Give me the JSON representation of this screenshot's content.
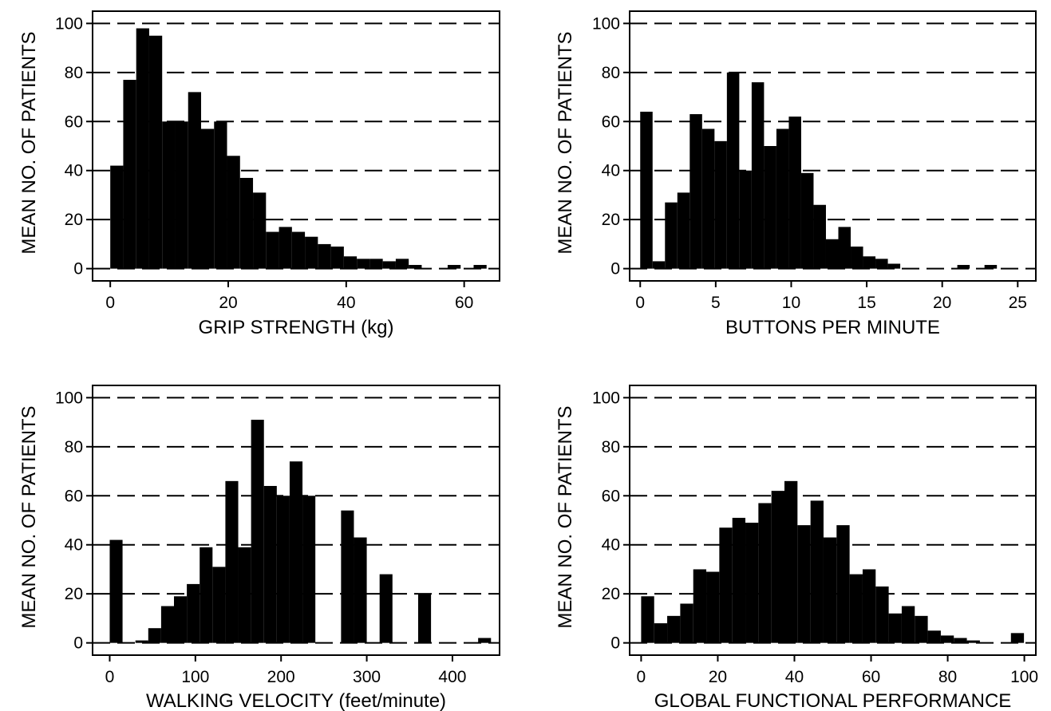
{
  "chart_data": [
    {
      "type": "bar",
      "xlabel": "GRIP STRENGTH (kg)",
      "ylabel": "MEAN NO. OF PATIENTS",
      "xlim": [
        -3,
        66
      ],
      "ylim": [
        -5,
        105
      ],
      "xticks": [
        0,
        20,
        40,
        60
      ],
      "yticks": [
        0,
        20,
        40,
        60,
        80,
        100
      ],
      "grid": "dashed horizontal",
      "bin_width": 2.2,
      "bars": [
        {
          "x0": 0.0,
          "value": 42
        },
        {
          "x0": 2.2,
          "value": 77
        },
        {
          "x0": 4.4,
          "value": 98
        },
        {
          "x0": 6.6,
          "value": 95
        },
        {
          "x0": 8.8,
          "value": 60
        },
        {
          "x0": 11.0,
          "value": 60
        },
        {
          "x0": 13.2,
          "value": 72
        },
        {
          "x0": 15.4,
          "value": 57
        },
        {
          "x0": 17.6,
          "value": 60
        },
        {
          "x0": 19.8,
          "value": 46
        },
        {
          "x0": 22.0,
          "value": 37
        },
        {
          "x0": 24.2,
          "value": 31
        },
        {
          "x0": 26.4,
          "value": 15
        },
        {
          "x0": 28.6,
          "value": 17
        },
        {
          "x0": 30.8,
          "value": 15
        },
        {
          "x0": 33.0,
          "value": 13
        },
        {
          "x0": 35.2,
          "value": 10
        },
        {
          "x0": 37.4,
          "value": 9
        },
        {
          "x0": 39.6,
          "value": 5
        },
        {
          "x0": 41.8,
          "value": 4
        },
        {
          "x0": 44.0,
          "value": 4
        },
        {
          "x0": 46.2,
          "value": 3
        },
        {
          "x0": 48.4,
          "value": 4
        },
        {
          "x0": 50.6,
          "value": 1.5
        },
        {
          "x0": 57.2,
          "value": 1.5
        },
        {
          "x0": 61.6,
          "value": 1.5
        }
      ]
    },
    {
      "type": "bar",
      "xlabel": "BUTTONS PER MINUTE",
      "ylabel": "MEAN NO. OF PATIENTS",
      "xlim": [
        -0.7,
        26.2
      ],
      "ylim": [
        -5,
        105
      ],
      "xticks": [
        0,
        5,
        10,
        15,
        20,
        25
      ],
      "yticks": [
        0,
        20,
        40,
        60,
        80,
        100
      ],
      "grid": "dashed horizontal",
      "bin_width": 0.82,
      "bars": [
        {
          "x0": 0.0,
          "value": 64
        },
        {
          "x0": 0.82,
          "value": 3
        },
        {
          "x0": 1.64,
          "value": 27
        },
        {
          "x0": 2.46,
          "value": 31
        },
        {
          "x0": 3.28,
          "value": 63
        },
        {
          "x0": 4.1,
          "value": 57
        },
        {
          "x0": 4.92,
          "value": 52
        },
        {
          "x0": 5.74,
          "value": 80
        },
        {
          "x0": 6.56,
          "value": 40
        },
        {
          "x0": 7.38,
          "value": 76
        },
        {
          "x0": 8.2,
          "value": 50
        },
        {
          "x0": 9.02,
          "value": 57
        },
        {
          "x0": 9.84,
          "value": 62
        },
        {
          "x0": 10.66,
          "value": 39
        },
        {
          "x0": 11.48,
          "value": 26
        },
        {
          "x0": 12.3,
          "value": 12
        },
        {
          "x0": 13.12,
          "value": 17
        },
        {
          "x0": 13.94,
          "value": 9
        },
        {
          "x0": 14.76,
          "value": 5
        },
        {
          "x0": 15.58,
          "value": 4
        },
        {
          "x0": 16.4,
          "value": 2
        },
        {
          "x0": 21.0,
          "value": 1.5
        },
        {
          "x0": 22.8,
          "value": 1.5
        }
      ]
    },
    {
      "type": "bar",
      "xlabel": "WALKING VELOCITY (feet/minute)",
      "ylabel": "MEAN NO. OF PATIENTS",
      "xlim": [
        -20,
        455
      ],
      "ylim": [
        -5,
        105
      ],
      "xticks": [
        0,
        100,
        200,
        300,
        400
      ],
      "yticks": [
        0,
        20,
        40,
        60,
        80,
        100
      ],
      "grid": "dashed horizontal",
      "bin_width": 15,
      "bars": [
        {
          "x0": 0,
          "value": 42
        },
        {
          "x0": 30,
          "value": 1
        },
        {
          "x0": 45,
          "value": 6
        },
        {
          "x0": 60,
          "value": 15
        },
        {
          "x0": 75,
          "value": 19
        },
        {
          "x0": 90,
          "value": 24
        },
        {
          "x0": 105,
          "value": 39
        },
        {
          "x0": 120,
          "value": 31
        },
        {
          "x0": 135,
          "value": 66
        },
        {
          "x0": 150,
          "value": 39
        },
        {
          "x0": 165,
          "value": 91
        },
        {
          "x0": 180,
          "value": 64
        },
        {
          "x0": 195,
          "value": 60
        },
        {
          "x0": 210,
          "value": 74
        },
        {
          "x0": 225,
          "value": 60
        },
        {
          "x0": 270,
          "value": 54
        },
        {
          "x0": 285,
          "value": 43
        },
        {
          "x0": 315,
          "value": 28
        },
        {
          "x0": 360,
          "value": 20
        },
        {
          "x0": 430,
          "value": 2
        }
      ]
    },
    {
      "type": "bar",
      "xlabel": "GLOBAL FUNCTIONAL PERFORMANCE",
      "ylabel": "MEAN NO. OF PATIENTS",
      "xlim": [
        -3,
        103
      ],
      "ylim": [
        -5,
        105
      ],
      "xticks": [
        0,
        20,
        40,
        60,
        80,
        100
      ],
      "yticks": [
        0,
        20,
        40,
        60,
        80,
        100
      ],
      "grid": "dashed horizontal",
      "bin_width": 3.4,
      "bars": [
        {
          "x0": 0.0,
          "value": 19
        },
        {
          "x0": 3.4,
          "value": 8
        },
        {
          "x0": 6.8,
          "value": 11
        },
        {
          "x0": 10.2,
          "value": 16
        },
        {
          "x0": 13.6,
          "value": 30
        },
        {
          "x0": 17.0,
          "value": 29
        },
        {
          "x0": 20.4,
          "value": 47
        },
        {
          "x0": 23.8,
          "value": 51
        },
        {
          "x0": 27.2,
          "value": 49
        },
        {
          "x0": 30.6,
          "value": 57
        },
        {
          "x0": 34.0,
          "value": 62
        },
        {
          "x0": 37.4,
          "value": 66
        },
        {
          "x0": 40.8,
          "value": 48
        },
        {
          "x0": 44.2,
          "value": 58
        },
        {
          "x0": 47.6,
          "value": 43
        },
        {
          "x0": 51.0,
          "value": 48
        },
        {
          "x0": 54.4,
          "value": 28
        },
        {
          "x0": 57.8,
          "value": 30
        },
        {
          "x0": 61.2,
          "value": 23
        },
        {
          "x0": 64.6,
          "value": 12
        },
        {
          "x0": 68.0,
          "value": 15
        },
        {
          "x0": 71.4,
          "value": 11
        },
        {
          "x0": 74.8,
          "value": 5
        },
        {
          "x0": 78.2,
          "value": 3
        },
        {
          "x0": 81.6,
          "value": 2
        },
        {
          "x0": 85.0,
          "value": 1
        },
        {
          "x0": 96.5,
          "value": 4
        }
      ]
    }
  ]
}
